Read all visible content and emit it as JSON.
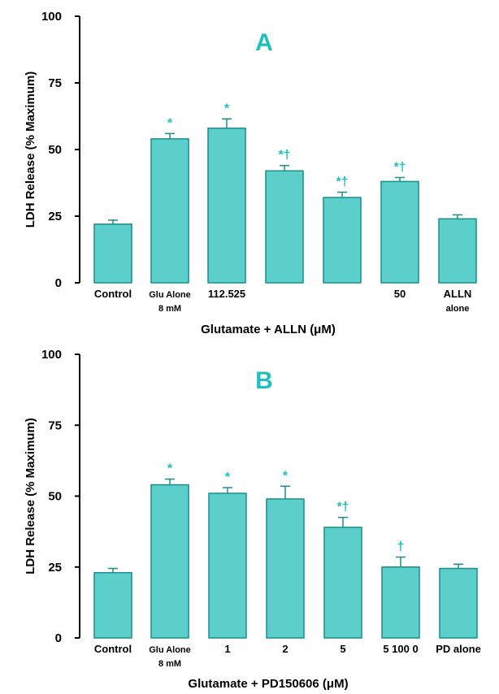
{
  "colors": {
    "bar_fill": "#5ccfca",
    "bar_stroke": "#1a8f8a",
    "accent": "#1fbfbf",
    "axis": "#000000"
  },
  "chart_data": [
    {
      "type": "bar",
      "panel_label": "A",
      "ylabel": "LDH Release (% Maximum)",
      "xlabel": "Glutamate + ALLN (μM)",
      "ylim": [
        0,
        100
      ],
      "yticks": [
        0,
        25,
        50,
        75,
        100
      ],
      "categories": [
        {
          "label": "Control",
          "sub": ""
        },
        {
          "label": "Glu Alone",
          "sub": "8 mM"
        },
        {
          "label": "112.525",
          "sub": ""
        },
        {
          "label": "",
          "sub": ""
        },
        {
          "label": "",
          "sub": ""
        },
        {
          "label": "50",
          "sub": ""
        },
        {
          "label": "ALLN",
          "sub": "alone"
        }
      ],
      "values": [
        22,
        54,
        58,
        42,
        32,
        38,
        24
      ],
      "errors": [
        1.5,
        2,
        3.5,
        2,
        2,
        1.5,
        1.5
      ],
      "annotations": [
        "",
        "*",
        "*",
        "*†",
        "*†",
        "*†",
        ""
      ]
    },
    {
      "type": "bar",
      "panel_label": "B",
      "ylabel": "LDH Release (% Maximum)",
      "xlabel": "Glutamate + PD150606 (μM)",
      "ylim": [
        0,
        100
      ],
      "yticks": [
        0,
        25,
        50,
        75,
        100
      ],
      "categories": [
        {
          "label": "Control",
          "sub": ""
        },
        {
          "label": "Glu Alone",
          "sub": "8 mM"
        },
        {
          "label": "1",
          "sub": ""
        },
        {
          "label": "2",
          "sub": ""
        },
        {
          "label": "5",
          "sub": ""
        },
        {
          "label": "5  100  0",
          "sub": ""
        },
        {
          "label": "PD alone",
          "sub": ""
        }
      ],
      "values": [
        23,
        54,
        51,
        49,
        39,
        25,
        24.5
      ],
      "errors": [
        1.5,
        2,
        2,
        4.5,
        3.5,
        3.5,
        1.5
      ],
      "annotations": [
        "",
        "*",
        "*",
        "*",
        "*†",
        "†",
        ""
      ]
    }
  ]
}
